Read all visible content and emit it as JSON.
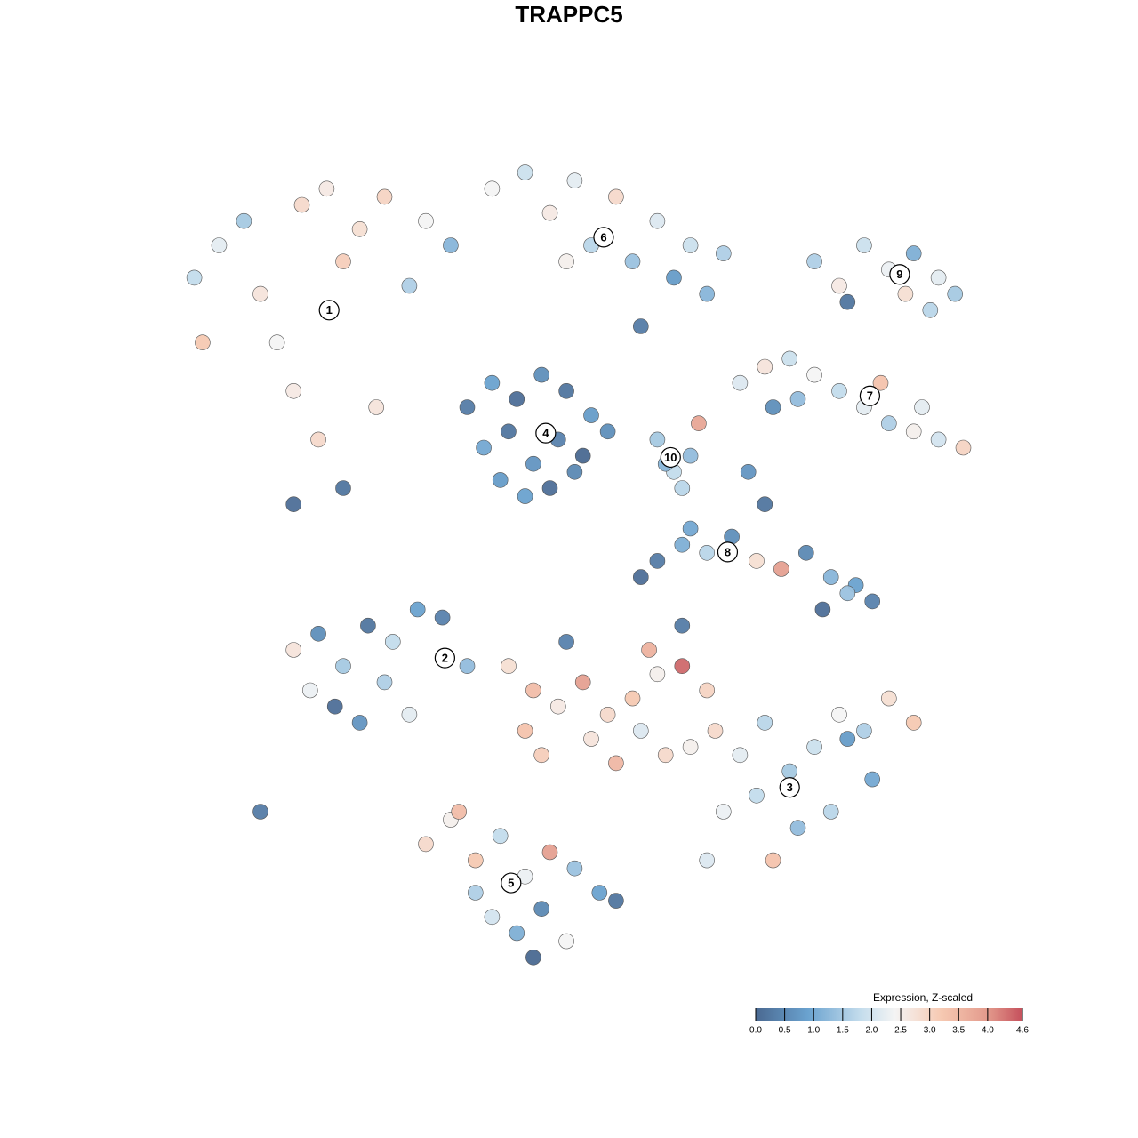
{
  "chart_data": {
    "type": "scatter",
    "title": "TRAPPC5",
    "xlim": [
      0,
      100
    ],
    "ylim": [
      0,
      100
    ],
    "colorbar_title": "Expression, Z-scaled",
    "colorlim": [
      0,
      4.6
    ],
    "colorticks": [
      {
        "value": 0,
        "label": "0.0"
      },
      {
        "value": 0.5,
        "label": "0.5"
      },
      {
        "value": 1,
        "label": "1.0"
      },
      {
        "value": 1.5,
        "label": "1.5"
      },
      {
        "value": 2,
        "label": "2.0"
      },
      {
        "value": 2.5,
        "label": "2.5"
      },
      {
        "value": 3,
        "label": "3.0"
      },
      {
        "value": 3.5,
        "label": "3.5"
      },
      {
        "value": 4,
        "label": "4.0"
      },
      {
        "value": 4.6,
        "label": "4.6"
      }
    ],
    "colorscale": [
      [
        0,
        "#4a6991"
      ],
      [
        0.9,
        "#6aa2cf"
      ],
      [
        1.8,
        "#c3dcec"
      ],
      [
        2.4,
        "#f4f4f4"
      ],
      [
        3.2,
        "#f6c9b2"
      ],
      [
        4.0,
        "#e39a8c"
      ],
      [
        4.6,
        "#c5505c"
      ]
    ],
    "series": [
      {
        "name": "1",
        "label_x": 18.3,
        "label_y": 82,
        "x": [
          2,
          5,
          8,
          10,
          12,
          15,
          18,
          20,
          22,
          25,
          28,
          30,
          33,
          14,
          17,
          20,
          24,
          3,
          14
        ],
        "y": [
          86,
          90,
          93,
          84,
          78,
          95,
          97,
          88,
          92,
          96,
          85,
          93,
          90,
          72,
          66,
          60,
          70,
          78,
          58
        ],
        "values": [
          1.8,
          2.2,
          1.5,
          2.7,
          2.4,
          2.9,
          2.6,
          3.1,
          2.8,
          3.0,
          1.6,
          2.4,
          1.2,
          2.6,
          2.9,
          0.2,
          2.7,
          3.2,
          0.1
        ]
      },
      {
        "name": "2",
        "label_x": 32.3,
        "label_y": 39,
        "x": [
          14,
          17,
          20,
          23,
          26,
          29,
          32,
          35,
          16,
          19,
          22,
          25,
          10,
          28
        ],
        "y": [
          40,
          42,
          38,
          43,
          41,
          45,
          44,
          38,
          35,
          33,
          31,
          36,
          20,
          32
        ],
        "values": [
          2.7,
          0.6,
          1.5,
          0.2,
          1.8,
          0.9,
          0.4,
          1.3,
          2.3,
          0.1,
          0.7,
          1.6,
          0.3,
          2.2
        ]
      },
      {
        "name": "3",
        "label_x": 74,
        "label_y": 23,
        "x": [
          62,
          65,
          68,
          71,
          74,
          77,
          80,
          83,
          86,
          89,
          66,
          70,
          75,
          79,
          84,
          64,
          72,
          81,
          40,
          43,
          46,
          49,
          52,
          55,
          58,
          61,
          64,
          47,
          50,
          53,
          56,
          59,
          44,
          61,
          42,
          57
        ],
        "y": [
          28,
          30,
          27,
          31,
          25,
          28,
          32,
          30,
          34,
          31,
          20,
          22,
          18,
          20,
          24,
          14,
          14,
          29,
          38,
          35,
          33,
          36,
          32,
          34,
          37,
          38,
          35,
          41,
          29,
          26,
          30,
          27,
          27,
          43,
          30,
          40
        ],
        "values": [
          2.5,
          2.9,
          2.2,
          1.7,
          1.5,
          1.9,
          2.4,
          1.6,
          2.8,
          3.2,
          2.3,
          1.8,
          1.3,
          1.7,
          1.0,
          2.1,
          3.3,
          0.8,
          2.8,
          3.4,
          2.6,
          3.9,
          2.9,
          3.2,
          2.5,
          4.4,
          3.0,
          0.4,
          2.7,
          3.5,
          2.1,
          2.9,
          3.1,
          0.3,
          3.3,
          3.6
        ]
      },
      {
        "name": "4",
        "label_x": 44.5,
        "label_y": 66.8,
        "x": [
          35,
          38,
          41,
          44,
          47,
          50,
          37,
          40,
          43,
          46,
          49,
          52,
          42,
          45,
          48,
          39
        ],
        "y": [
          70,
          73,
          71,
          74,
          72,
          69,
          65,
          67,
          63,
          66,
          64,
          67,
          59,
          60,
          62,
          61
        ],
        "values": [
          0.3,
          0.9,
          0.1,
          0.6,
          0.2,
          0.8,
          1.0,
          0.2,
          0.7,
          0.4,
          0.0,
          0.6,
          0.9,
          0.1,
          0.5,
          0.8
        ]
      },
      {
        "name": "5",
        "label_x": 40.3,
        "label_y": 11.2,
        "x": [
          30,
          33,
          36,
          39,
          42,
          45,
          48,
          51,
          38,
          41,
          44,
          47,
          34,
          36,
          53,
          43
        ],
        "y": [
          16,
          19,
          14,
          17,
          12,
          15,
          13,
          10,
          7,
          5,
          8,
          4,
          20,
          10,
          9,
          2
        ],
        "values": [
          2.9,
          2.5,
          3.2,
          1.8,
          2.3,
          3.9,
          1.4,
          0.9,
          2.0,
          1.1,
          0.5,
          2.4,
          3.4,
          1.6,
          0.2,
          0.0
        ]
      },
      {
        "name": "6",
        "label_x": 51.5,
        "label_y": 91,
        "x": [
          38,
          42,
          45,
          48,
          50,
          53,
          55,
          58,
          60,
          62,
          64,
          47,
          56,
          66
        ],
        "y": [
          97,
          99,
          94,
          98,
          90,
          96,
          88,
          93,
          86,
          90,
          84,
          88,
          80,
          89
        ],
        "values": [
          2.4,
          1.9,
          2.6,
          2.2,
          1.7,
          2.9,
          1.4,
          2.1,
          0.8,
          1.9,
          1.2,
          2.5,
          0.3,
          1.6
        ]
      },
      {
        "name": "7",
        "label_x": 83.7,
        "label_y": 71.4,
        "x": [
          68,
          71,
          74,
          77,
          80,
          83,
          86,
          89,
          92,
          95,
          75,
          85,
          90,
          72
        ],
        "y": [
          73,
          75,
          76,
          74,
          72,
          70,
          68,
          67,
          66,
          65,
          71,
          73,
          70,
          70
        ],
        "values": [
          2.1,
          2.7,
          1.9,
          2.4,
          1.8,
          2.2,
          1.6,
          2.5,
          2.0,
          3.0,
          1.3,
          3.3,
          2.2,
          0.6
        ]
      },
      {
        "name": "8",
        "label_x": 66.5,
        "label_y": 52.1,
        "x": [
          58,
          61,
          64,
          67,
          70,
          73,
          76,
          79,
          82,
          84,
          78,
          81,
          71,
          69,
          56,
          62
        ],
        "y": [
          51,
          53,
          52,
          54,
          51,
          50,
          52,
          49,
          48,
          46,
          45,
          47,
          58,
          62,
          49,
          55
        ],
        "values": [
          0.3,
          1.1,
          1.7,
          0.6,
          2.8,
          3.9,
          0.5,
          1.2,
          0.9,
          0.4,
          0.1,
          1.4,
          0.2,
          0.7,
          0.1,
          1.0
        ]
      },
      {
        "name": "9",
        "label_x": 87.3,
        "label_y": 86.4,
        "x": [
          77,
          80,
          83,
          86,
          89,
          92,
          94,
          81,
          88,
          91
        ],
        "y": [
          88,
          85,
          90,
          87,
          89,
          86,
          84,
          83,
          84,
          82
        ],
        "values": [
          1.6,
          2.6,
          1.9,
          2.3,
          1.1,
          2.2,
          1.5,
          0.2,
          2.8,
          1.7
        ]
      },
      {
        "name": "10",
        "label_x": 59.6,
        "label_y": 63.8,
        "x": [
          58,
          60,
          62,
          61,
          59,
          63
        ],
        "y": [
          66,
          62,
          64,
          60,
          63,
          68
        ],
        "values": [
          1.5,
          1.8,
          1.3,
          1.7,
          1.2,
          3.8
        ]
      }
    ]
  }
}
